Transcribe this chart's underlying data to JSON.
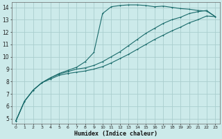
{
  "bg_color": "#cceaea",
  "grid_color": "#aacece",
  "line_color": "#1a6b6b",
  "xlabel": "Humidex (Indice chaleur)",
  "xlim": [
    -0.5,
    23.5
  ],
  "ylim": [
    4.6,
    14.4
  ],
  "xticks": [
    0,
    1,
    2,
    3,
    4,
    5,
    6,
    7,
    8,
    9,
    10,
    11,
    12,
    13,
    14,
    15,
    16,
    17,
    18,
    19,
    20,
    21,
    22,
    23
  ],
  "yticks": [
    5,
    6,
    7,
    8,
    9,
    10,
    11,
    12,
    13,
    14
  ],
  "line1_x": [
    0,
    1,
    2,
    3,
    4,
    5,
    6,
    7,
    8,
    9,
    10,
    11,
    12,
    13,
    14,
    15,
    16,
    17,
    18,
    19,
    20,
    21,
    22,
    23
  ],
  "line1_y": [
    4.8,
    6.4,
    7.3,
    7.9,
    8.3,
    8.65,
    8.9,
    9.15,
    9.6,
    10.35,
    13.5,
    14.05,
    14.15,
    14.2,
    14.2,
    14.15,
    14.05,
    14.1,
    14.0,
    13.9,
    13.85,
    13.75,
    13.7,
    13.25
  ],
  "line2_x": [
    0,
    1,
    2,
    3,
    4,
    5,
    6,
    7,
    8,
    9,
    10,
    11,
    12,
    13,
    14,
    15,
    16,
    17,
    18,
    19,
    20,
    21,
    22,
    23
  ],
  "line2_y": [
    4.8,
    6.4,
    7.3,
    7.9,
    8.3,
    8.6,
    8.8,
    9.0,
    9.1,
    9.3,
    9.6,
    10.0,
    10.4,
    10.9,
    11.4,
    11.9,
    12.3,
    12.7,
    13.0,
    13.2,
    13.5,
    13.65,
    13.75,
    13.25
  ],
  "line3_x": [
    0,
    1,
    2,
    3,
    4,
    5,
    6,
    7,
    8,
    9,
    10,
    11,
    12,
    13,
    14,
    15,
    16,
    17,
    18,
    19,
    20,
    21,
    22,
    23
  ],
  "line3_y": [
    4.8,
    6.4,
    7.3,
    7.9,
    8.2,
    8.5,
    8.65,
    8.75,
    8.85,
    9.0,
    9.2,
    9.5,
    9.85,
    10.2,
    10.6,
    11.0,
    11.4,
    11.75,
    12.1,
    12.4,
    12.75,
    13.0,
    13.3,
    13.25
  ]
}
